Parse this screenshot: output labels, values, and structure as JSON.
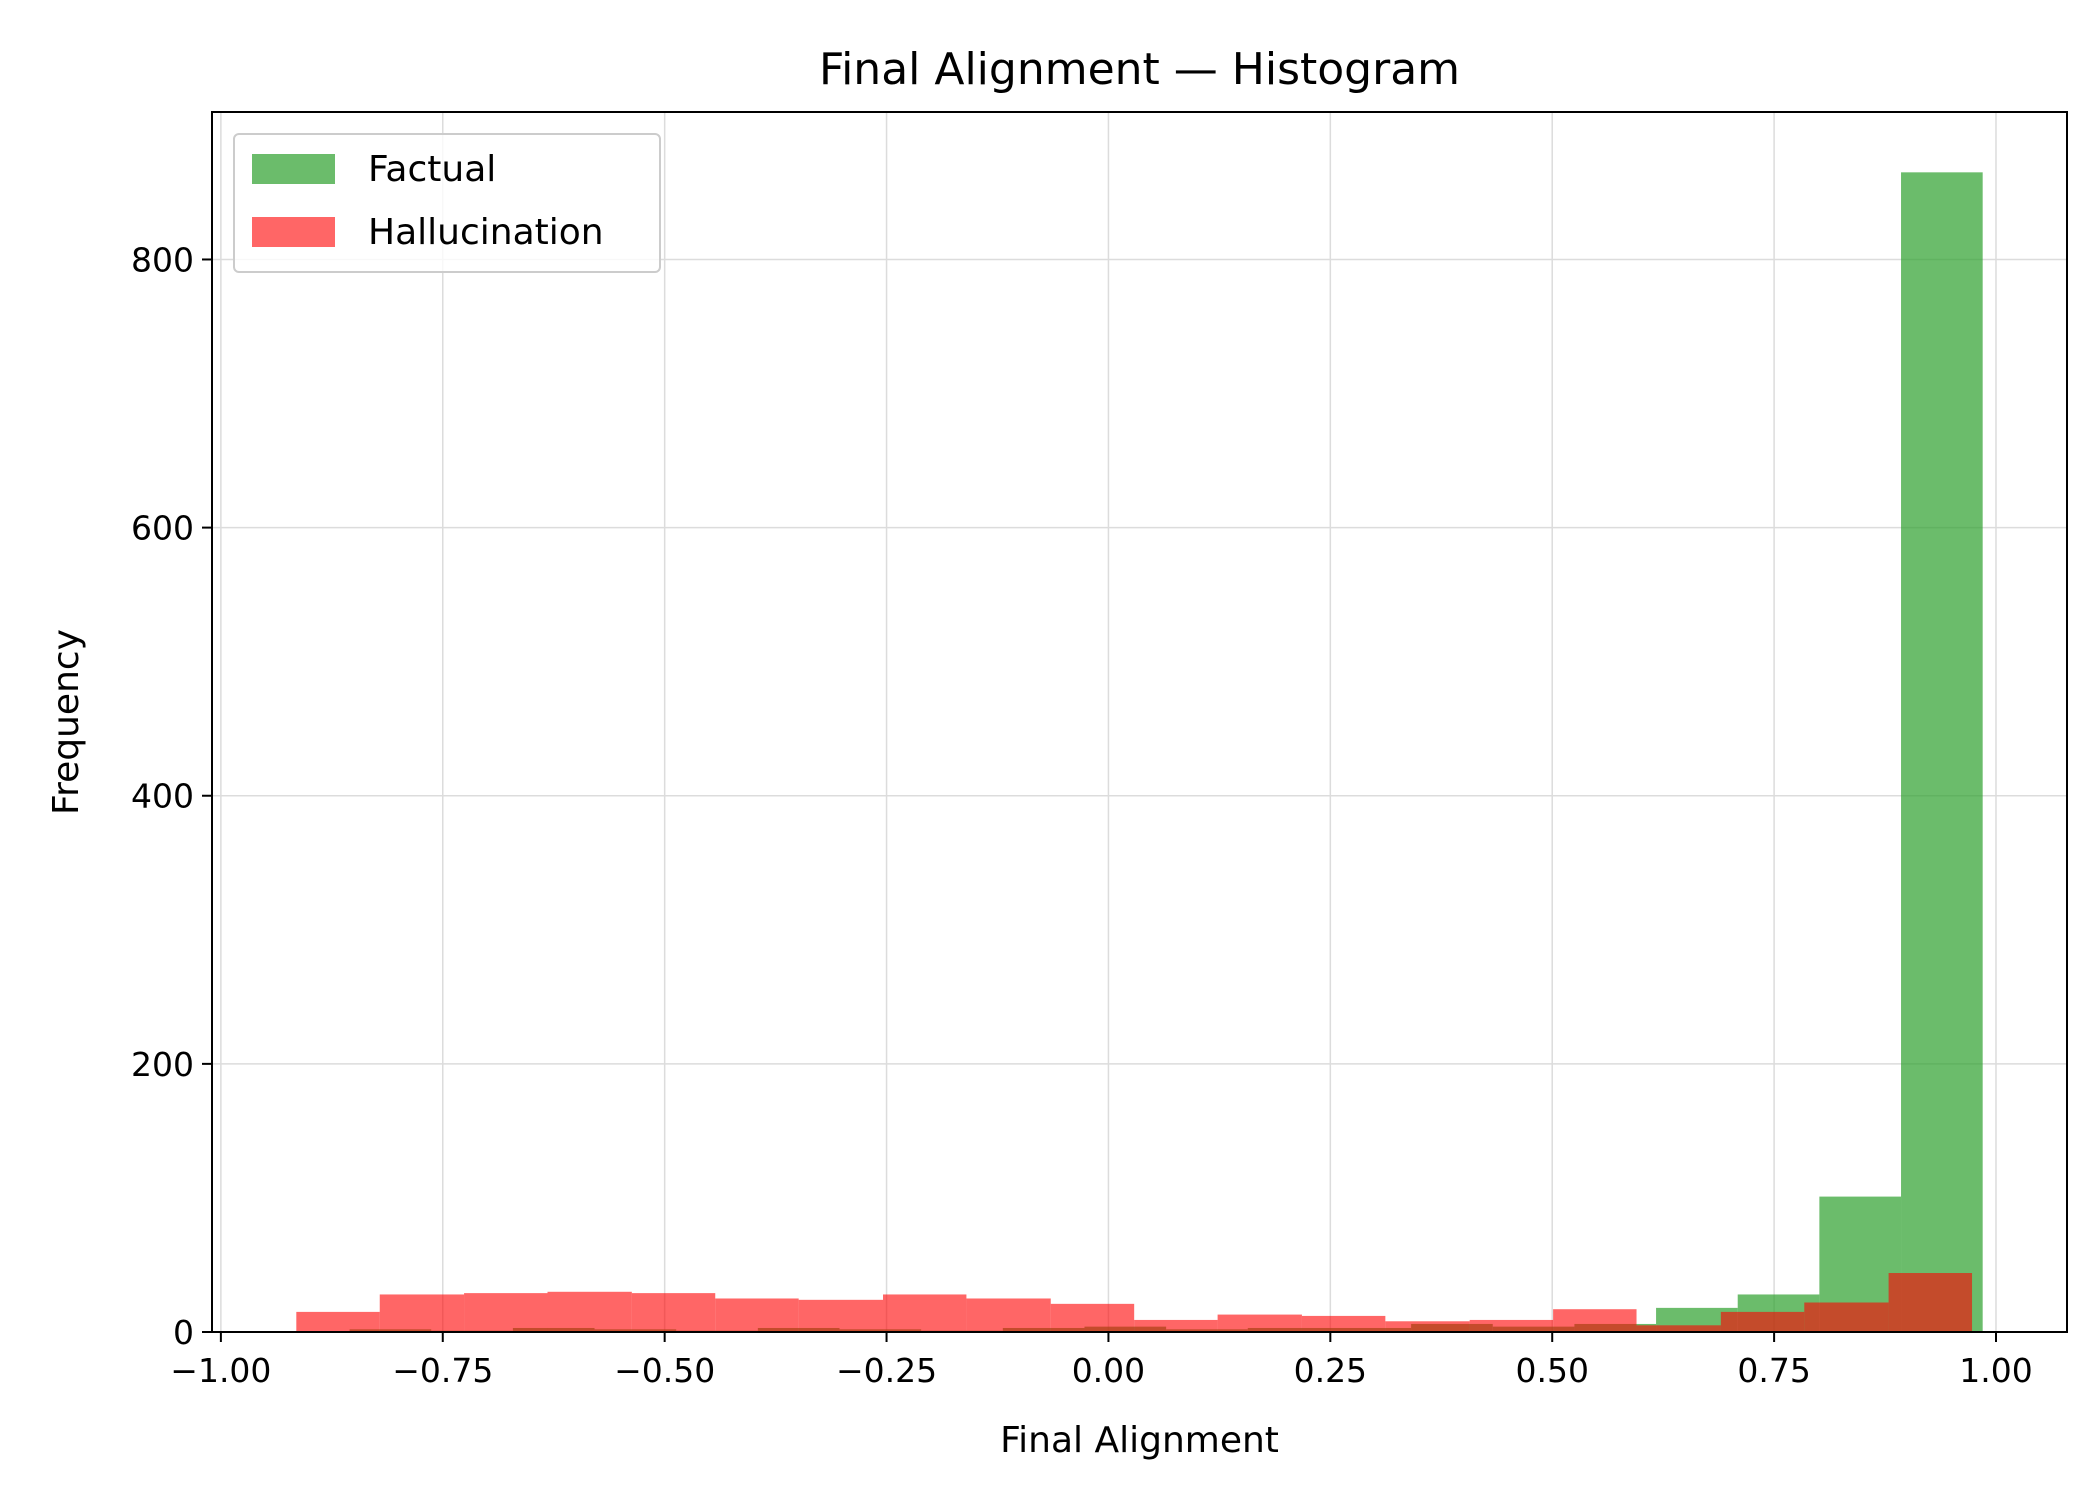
{
  "chart_data": {
    "type": "bar",
    "title": "Final Alignment — Histogram",
    "xlabel": "Final Alignment",
    "ylabel": "Frequency",
    "xlim": [
      -1.01,
      1.08
    ],
    "ylim": [
      0,
      910
    ],
    "xticks": [
      -1.0,
      -0.75,
      -0.5,
      -0.25,
      0.0,
      0.25,
      0.5,
      0.75,
      1.0
    ],
    "xtick_labels": [
      "−1.00",
      "−0.75",
      "−0.50",
      "−0.25",
      "0.00",
      "0.25",
      "0.50",
      "0.75",
      "1.00"
    ],
    "yticks": [
      0,
      200,
      400,
      600,
      800
    ],
    "ytick_labels": [
      "0",
      "200",
      "400",
      "600",
      "800"
    ],
    "grid": true,
    "legend_position": "top-left",
    "series": [
      {
        "name": "Factual",
        "color": "#2ca02c",
        "opacity": 0.7,
        "bins": [
          {
            "x0": -0.855,
            "x1": -0.763,
            "count": 2
          },
          {
            "x0": -0.763,
            "x1": -0.671,
            "count": 1
          },
          {
            "x0": -0.671,
            "x1": -0.579,
            "count": 3
          },
          {
            "x0": -0.579,
            "x1": -0.487,
            "count": 2
          },
          {
            "x0": -0.487,
            "x1": -0.395,
            "count": 1
          },
          {
            "x0": -0.395,
            "x1": -0.303,
            "count": 3
          },
          {
            "x0": -0.303,
            "x1": -0.211,
            "count": 2
          },
          {
            "x0": -0.211,
            "x1": -0.119,
            "count": 1
          },
          {
            "x0": -0.119,
            "x1": -0.027,
            "count": 3
          },
          {
            "x0": -0.027,
            "x1": 0.065,
            "count": 4
          },
          {
            "x0": 0.065,
            "x1": 0.157,
            "count": 2
          },
          {
            "x0": 0.157,
            "x1": 0.249,
            "count": 3
          },
          {
            "x0": 0.249,
            "x1": 0.341,
            "count": 3
          },
          {
            "x0": 0.341,
            "x1": 0.433,
            "count": 6
          },
          {
            "x0": 0.433,
            "x1": 0.525,
            "count": 4
          },
          {
            "x0": 0.525,
            "x1": 0.617,
            "count": 6
          },
          {
            "x0": 0.617,
            "x1": 0.709,
            "count": 18
          },
          {
            "x0": 0.709,
            "x1": 0.801,
            "count": 28
          },
          {
            "x0": 0.801,
            "x1": 0.893,
            "count": 101
          },
          {
            "x0": 0.893,
            "x1": 0.985,
            "count": 865
          }
        ]
      },
      {
        "name": "Hallucination",
        "color": "#ff0000",
        "opacity": 0.6,
        "bins": [
          {
            "x0": -0.915,
            "x1": -0.821,
            "count": 15
          },
          {
            "x0": -0.821,
            "x1": -0.726,
            "count": 28
          },
          {
            "x0": -0.726,
            "x1": -0.632,
            "count": 29
          },
          {
            "x0": -0.632,
            "x1": -0.537,
            "count": 30
          },
          {
            "x0": -0.537,
            "x1": -0.443,
            "count": 29
          },
          {
            "x0": -0.443,
            "x1": -0.349,
            "count": 25
          },
          {
            "x0": -0.349,
            "x1": -0.254,
            "count": 24
          },
          {
            "x0": -0.254,
            "x1": -0.16,
            "count": 28
          },
          {
            "x0": -0.16,
            "x1": -0.065,
            "count": 25
          },
          {
            "x0": -0.065,
            "x1": 0.029,
            "count": 21
          },
          {
            "x0": 0.029,
            "x1": 0.123,
            "count": 9
          },
          {
            "x0": 0.123,
            "x1": 0.218,
            "count": 13
          },
          {
            "x0": 0.218,
            "x1": 0.312,
            "count": 12
          },
          {
            "x0": 0.312,
            "x1": 0.407,
            "count": 8
          },
          {
            "x0": 0.407,
            "x1": 0.501,
            "count": 9
          },
          {
            "x0": 0.501,
            "x1": 0.595,
            "count": 17
          },
          {
            "x0": 0.595,
            "x1": 0.69,
            "count": 5
          },
          {
            "x0": 0.69,
            "x1": 0.784,
            "count": 15
          },
          {
            "x0": 0.784,
            "x1": 0.879,
            "count": 22
          },
          {
            "x0": 0.879,
            "x1": 0.973,
            "count": 44
          }
        ]
      }
    ]
  }
}
